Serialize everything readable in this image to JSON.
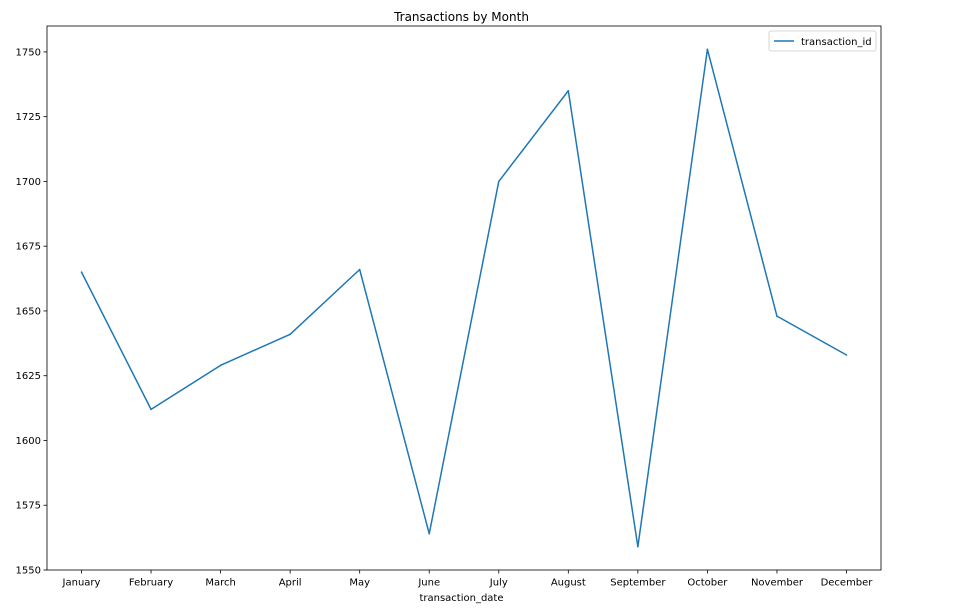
{
  "chart_data": {
    "type": "line",
    "title": "Transactions by Month",
    "xlabel": "transaction_date",
    "ylabel": "",
    "categories": [
      "January",
      "February",
      "March",
      "April",
      "May",
      "June",
      "July",
      "August",
      "September",
      "October",
      "November",
      "December"
    ],
    "series": [
      {
        "name": "transaction_id",
        "color": "#1f77b4",
        "values": [
          1665,
          1612,
          1629,
          1641,
          1666,
          1564,
          1700,
          1735,
          1559,
          1751,
          1648,
          1633
        ]
      }
    ],
    "ylim": [
      1550,
      1760
    ],
    "yticks": [
      1550,
      1575,
      1600,
      1625,
      1650,
      1675,
      1700,
      1725,
      1750
    ],
    "grid": false,
    "legend_position": "top-right"
  }
}
